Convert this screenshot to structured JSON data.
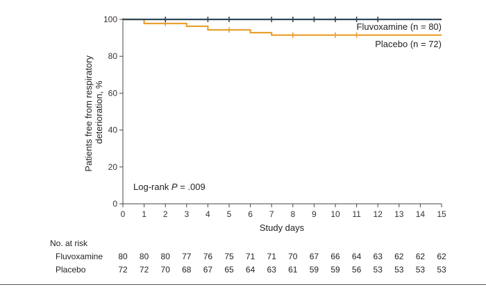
{
  "chart_data": {
    "type": "line",
    "step": true,
    "xlabel": "Study days",
    "ylabel_lines": [
      "Patients free from respiratory",
      "deterioration, %"
    ],
    "xlim": [
      0,
      15
    ],
    "ylim": [
      0,
      100
    ],
    "xticks": [
      0,
      1,
      2,
      3,
      4,
      5,
      6,
      7,
      8,
      9,
      10,
      11,
      12,
      13,
      14,
      15
    ],
    "yticks": [
      0,
      20,
      40,
      60,
      80,
      100
    ],
    "grid": false,
    "series": [
      {
        "name": "Fluvoxamine (n = 80)",
        "color": "#2e4657",
        "steps": [
          [
            0,
            100
          ],
          [
            15,
            100
          ]
        ],
        "censor_x": [
          2,
          4,
          5,
          7,
          8,
          9,
          10,
          11,
          12
        ]
      },
      {
        "name": "Placebo (n = 72)",
        "color": "#e8a030",
        "steps": [
          [
            0,
            100
          ],
          [
            1,
            97.8
          ],
          [
            3,
            96.3
          ],
          [
            4,
            94.3
          ],
          [
            6,
            92.8
          ],
          [
            7,
            91.5
          ],
          [
            15,
            91.5
          ]
        ],
        "censor_x": [
          2,
          5,
          8,
          10,
          11
        ]
      }
    ],
    "annotation": {
      "prefix": "Log-rank ",
      "italic": "P",
      "suffix": " = .009"
    }
  },
  "risk_table": {
    "title": "No. at risk",
    "rows": [
      {
        "label": "Fluvoxamine",
        "values": [
          "80",
          "80",
          "80",
          "77",
          "76",
          "75",
          "71",
          "71",
          "70",
          "67",
          "66",
          "64",
          "63",
          "62",
          "62",
          "62"
        ]
      },
      {
        "label": "Placebo",
        "values": [
          "72",
          "72",
          "70",
          "68",
          "67",
          "65",
          "64",
          "63",
          "61",
          "59",
          "59",
          "56",
          "53",
          "53",
          "53",
          "53"
        ]
      }
    ]
  }
}
